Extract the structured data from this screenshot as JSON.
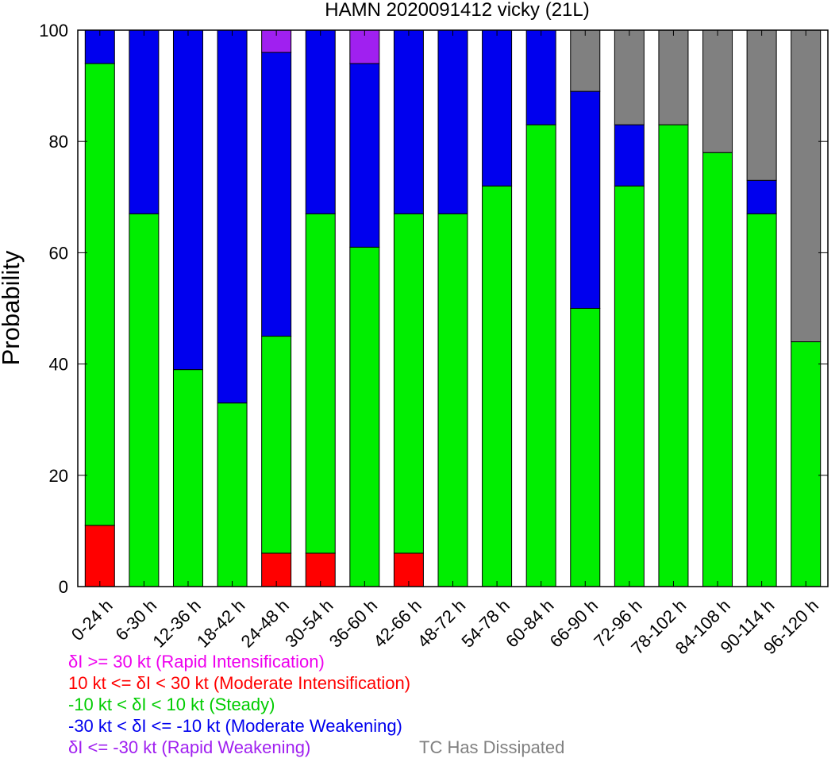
{
  "chart_data": {
    "type": "bar",
    "stacked": true,
    "title": "HAMN 2020091412 vicky (21L)",
    "xlabel": "",
    "ylabel": "Probability",
    "ylim": [
      0,
      100
    ],
    "yticks": [
      0,
      20,
      40,
      60,
      80,
      100
    ],
    "grid": false,
    "categories": [
      "0-24 h",
      "6-30 h",
      "12-36 h",
      "18-42 h",
      "24-48 h",
      "30-54 h",
      "36-60 h",
      "42-66 h",
      "48-72 h",
      "54-78 h",
      "60-84 h",
      "66-90 h",
      "72-96 h",
      "78-102 h",
      "84-108 h",
      "90-114 h",
      "96-120 h"
    ],
    "series": [
      {
        "key": "moderate_intensification",
        "color": "#ff0000",
        "values": [
          11,
          0,
          0,
          0,
          6,
          6,
          0,
          6,
          0,
          0,
          0,
          0,
          0,
          0,
          0,
          0,
          0
        ]
      },
      {
        "key": "steady",
        "color": "#00ee00",
        "values": [
          83,
          67,
          39,
          33,
          39,
          61,
          61,
          61,
          67,
          72,
          83,
          50,
          72,
          83,
          78,
          67,
          44
        ]
      },
      {
        "key": "moderate_weakening",
        "color": "#0000ee",
        "values": [
          6,
          33,
          61,
          67,
          51,
          33,
          33,
          33,
          33,
          28,
          17,
          39,
          11,
          0,
          0,
          6,
          0
        ]
      },
      {
        "key": "rapid_weakening",
        "color": "#a020f0",
        "values": [
          0,
          0,
          0,
          0,
          4,
          0,
          6,
          0,
          0,
          0,
          0,
          0,
          0,
          0,
          0,
          0,
          0
        ]
      },
      {
        "key": "dissipated",
        "color": "#808080",
        "values": [
          0,
          0,
          0,
          0,
          0,
          0,
          0,
          0,
          0,
          0,
          0,
          11,
          17,
          17,
          22,
          27,
          56
        ]
      }
    ],
    "legend": {
      "placement": "bottom",
      "entries": [
        {
          "text": "δI >= 30 kt (Rapid Intensification)",
          "color": "#ee00ee"
        },
        {
          "text": "10 kt <= δI < 30 kt (Moderate Intensification)",
          "color": "#ff0000"
        },
        {
          "text": "-10 kt < δI < 10 kt (Steady)",
          "color": "#00cc00"
        },
        {
          "text": "-30 kt < δI <= -10 kt (Moderate Weakening)",
          "color": "#0000ee"
        },
        {
          "text": "δI <= -30 kt (Rapid Weakening)",
          "color": "#a020f0"
        },
        {
          "text": "TC Has Dissipated",
          "color": "#808080"
        }
      ]
    }
  }
}
